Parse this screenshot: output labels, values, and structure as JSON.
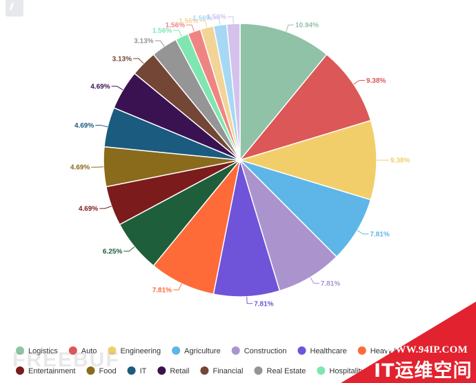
{
  "chart_data": {
    "type": "pie",
    "slices": [
      {
        "label": "Logistics",
        "value": 10.94,
        "display": "10.94%",
        "color": "#8fc2a7"
      },
      {
        "label": "Auto",
        "value": 9.38,
        "display": "9.38%",
        "color": "#dc5757"
      },
      {
        "label": "Engineering",
        "value": 9.38,
        "display": "9.38%",
        "color": "#f2ce6b"
      },
      {
        "label": "Agriculture",
        "value": 7.81,
        "display": "7.81%",
        "color": "#5db6e7"
      },
      {
        "label": "Construction",
        "value": 7.81,
        "display": "7.81%",
        "color": "#ab94cd"
      },
      {
        "label": "Healthcare",
        "value": 7.81,
        "display": "7.81%",
        "color": "#6f53d9"
      },
      {
        "label": "Heavy Industry",
        "value": 7.81,
        "display": "7.81%",
        "color": "#fe6b38"
      },
      {
        "label": "",
        "value": 6.25,
        "display": "6.25%",
        "color": "#1f5e3a"
      },
      {
        "label": "Entertainment",
        "value": 4.69,
        "display": "4.69%",
        "color": "#7b1b1b"
      },
      {
        "label": "Food",
        "value": 4.69,
        "display": "4.69%",
        "color": "#8a6a1b"
      },
      {
        "label": "IT",
        "value": 4.69,
        "display": "4.69%",
        "color": "#1a5b7f"
      },
      {
        "label": "Retail",
        "value": 4.69,
        "display": "4.69%",
        "color": "#3a1251"
      },
      {
        "label": "Financial",
        "value": 3.13,
        "display": "3.13%",
        "color": "#734635"
      },
      {
        "label": "Real Estate",
        "value": 3.13,
        "display": "3.13%",
        "color": "#959595"
      },
      {
        "label": "Hospitality",
        "value": 1.56,
        "display": "1.56%",
        "color": "#7fe6b0"
      },
      {
        "label": "",
        "value": 1.56,
        "display": "1.56%",
        "color": "#ef8582"
      },
      {
        "label": "",
        "value": 1.56,
        "display": "1.56%",
        "color": "#f2d497"
      },
      {
        "label": "",
        "value": 1.56,
        "display": "1.56%",
        "color": "#a6d8f4"
      },
      {
        "label": "",
        "value": 1.56,
        "display": "1.56%",
        "color": "#d4c2ed"
      }
    ],
    "legend_rows": [
      [
        "Logistics",
        "Auto",
        "Engineering",
        "Agriculture",
        "Construction",
        "Healthcare",
        "Heavy Industry"
      ],
      [
        "Entertainment",
        "Food",
        "IT",
        "Retail",
        "Financial",
        "Real Estate",
        "Hospitality"
      ]
    ],
    "legend_position": "bottom",
    "title": ""
  },
  "watermarks": {
    "left_brand": "FREEBUF",
    "badge_url": "WWW.94IP.COM",
    "badge_title": "IT运维空间"
  }
}
